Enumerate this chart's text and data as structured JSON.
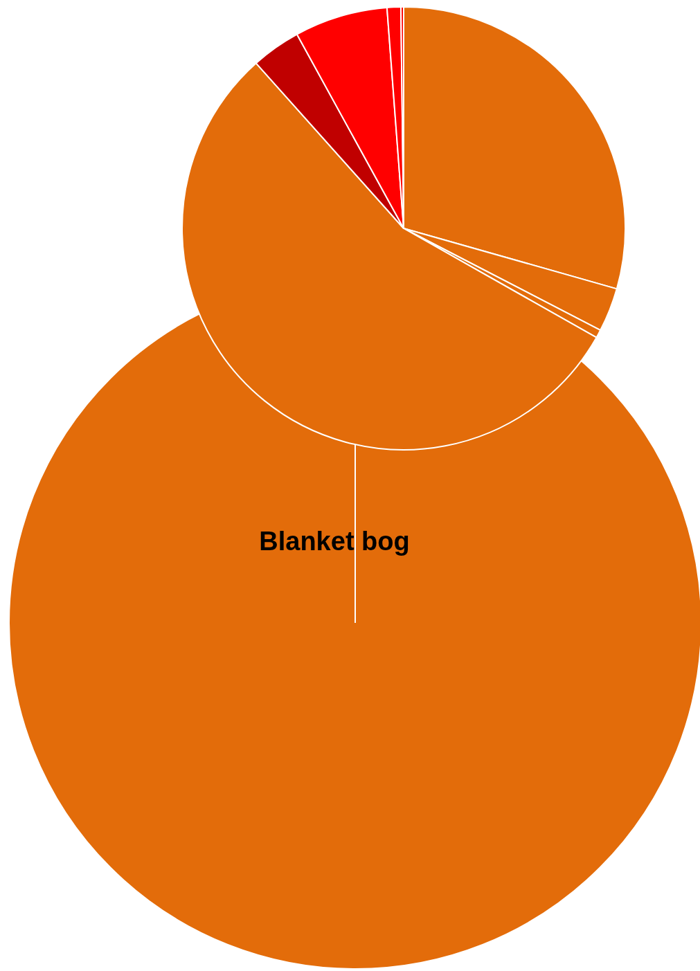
{
  "chart_data": [
    {
      "type": "pie",
      "categories": [
        null,
        null,
        null,
        null,
        null,
        null,
        null,
        null
      ],
      "values": [
        29.4,
        3.2,
        0.6,
        55.2,
        3.6,
        6.8,
        1.0,
        0.2
      ],
      "colors": [
        "#e36c0a",
        "#e36c0a",
        "#e36c0a",
        "#e36c0a",
        "#c00000",
        "#ff0000",
        "#ff0000",
        "#ff0000"
      ]
    },
    {
      "type": "pie",
      "categories": [
        "Blanket bog"
      ],
      "values": [
        100
      ],
      "colors": [
        "#e36c0a"
      ]
    }
  ]
}
